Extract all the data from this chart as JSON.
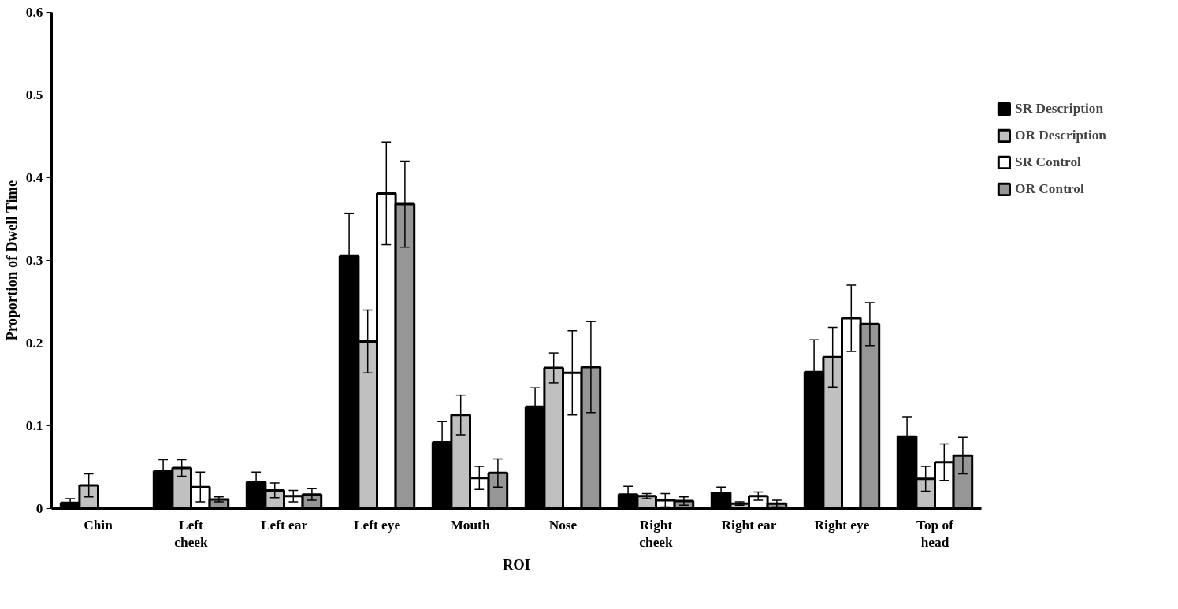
{
  "chart_data": {
    "type": "bar",
    "xlabel": "ROI",
    "ylabel": "Proportion of Dwell Time",
    "categories": [
      "Chin",
      "Left cheek",
      "Left ear",
      "Left eye",
      "Mouth",
      "Nose",
      "Right cheek",
      "Right ear",
      "Right eye",
      "Top of head"
    ],
    "series": [
      {
        "name": "SR Description",
        "color": "#000000",
        "values": [
          0.007,
          0.045,
          0.032,
          0.305,
          0.08,
          0.123,
          0.017,
          0.019,
          0.165,
          0.087
        ],
        "errors": [
          0.005,
          0.014,
          0.012,
          0.052,
          0.025,
          0.023,
          0.01,
          0.007,
          0.039,
          0.024
        ]
      },
      {
        "name": "OR Description",
        "color": "#c0c0c0",
        "values": [
          0.028,
          0.049,
          0.022,
          0.202,
          0.113,
          0.17,
          0.015,
          0.006,
          0.183,
          0.036
        ],
        "errors": [
          0.014,
          0.01,
          0.009,
          0.038,
          0.024,
          0.018,
          0.003,
          0.002,
          0.036,
          0.015
        ]
      },
      {
        "name": "SR Control",
        "color": "#ffffff",
        "values": [
          null,
          0.026,
          0.015,
          0.381,
          0.037,
          0.164,
          0.01,
          0.015,
          0.23,
          0.056
        ],
        "errors": [
          null,
          0.018,
          0.007,
          0.062,
          0.014,
          0.051,
          0.008,
          0.005,
          0.04,
          0.022
        ]
      },
      {
        "name": "OR Control",
        "color": "#969696",
        "values": [
          null,
          0.011,
          0.017,
          0.368,
          0.043,
          0.171,
          0.009,
          0.006,
          0.223,
          0.064
        ],
        "errors": [
          null,
          0.003,
          0.007,
          0.052,
          0.017,
          0.055,
          0.005,
          0.004,
          0.026,
          0.022
        ]
      }
    ],
    "ylim": [
      0,
      0.6
    ],
    "yticks": [
      0,
      0.1,
      0.2,
      0.3,
      0.4,
      0.5,
      0.6
    ],
    "grid": false,
    "legend": "right"
  }
}
